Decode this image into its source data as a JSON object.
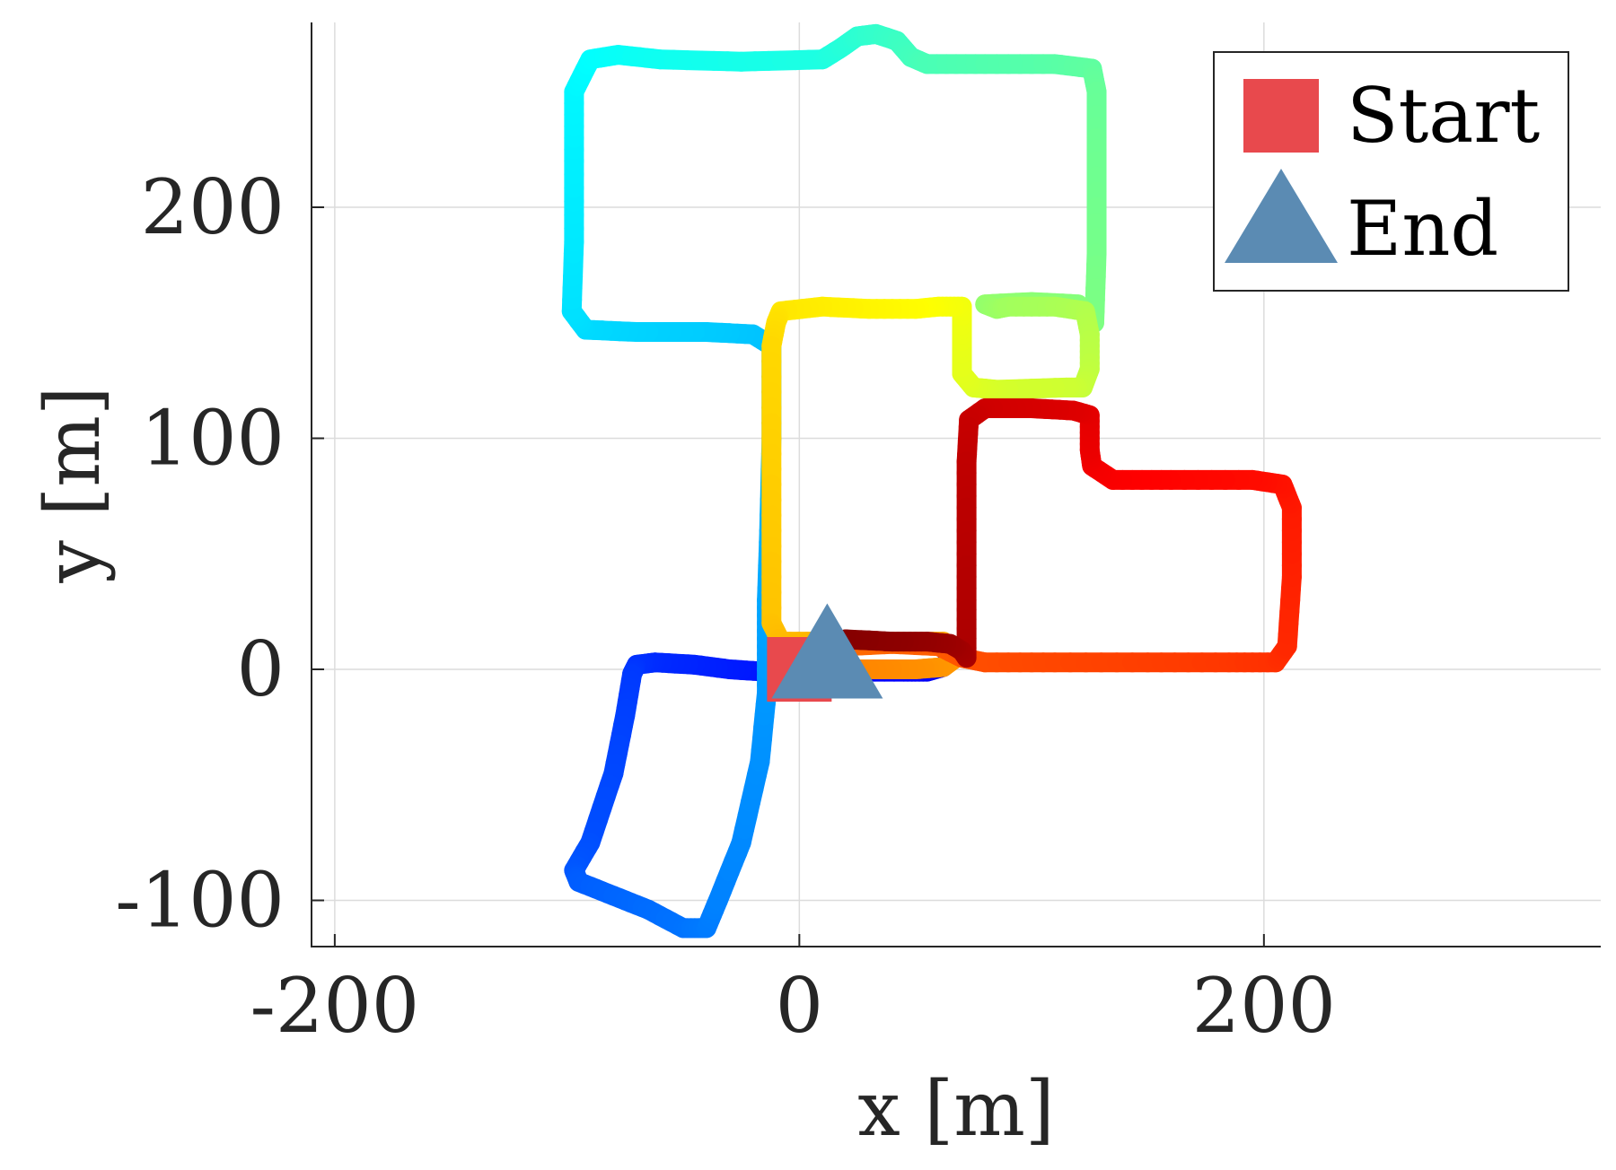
{
  "chart_data": {
    "type": "line",
    "xlabel": "x [m]",
    "ylabel": "y [m]",
    "xlim": [
      -210,
      345
    ],
    "ylim": [
      -120,
      280
    ],
    "xticks": [
      -200,
      0,
      200
    ],
    "yticks": [
      -100,
      0,
      100,
      200
    ],
    "xtick_labels": [
      "-200",
      "0",
      "200"
    ],
    "ytick_labels": [
      "-100",
      "0",
      "100",
      "200"
    ],
    "grid": true,
    "legend_position": "top-right",
    "legend": [
      {
        "label": "Start",
        "marker": "square",
        "color": "#e8494d"
      },
      {
        "label": "End",
        "marker": "triangle",
        "color": "#5b8bb3"
      }
    ],
    "start_point": {
      "x": 0,
      "y": 0
    },
    "end_point": {
      "x": 12,
      "y": 6
    },
    "colormap": "jet",
    "trajectory": [
      [
        5,
        10
      ],
      [
        20,
        13
      ],
      [
        40,
        12
      ],
      [
        55,
        12
      ],
      [
        65,
        11
      ],
      [
        70,
        8
      ],
      [
        72,
        5
      ],
      [
        72,
        30
      ],
      [
        72,
        60
      ],
      [
        72,
        90
      ],
      [
        73,
        108
      ],
      [
        80,
        113
      ],
      [
        100,
        113
      ],
      [
        118,
        112
      ],
      [
        125,
        110
      ],
      [
        125,
        95
      ],
      [
        126,
        88
      ],
      [
        135,
        82
      ],
      [
        160,
        82
      ],
      [
        195,
        82
      ],
      [
        208,
        80
      ],
      [
        212,
        70
      ],
      [
        212,
        40
      ],
      [
        210,
        10
      ],
      [
        205,
        3
      ],
      [
        185,
        3
      ],
      [
        150,
        3
      ],
      [
        110,
        3
      ],
      [
        80,
        3
      ],
      [
        70,
        5
      ],
      [
        60,
        10
      ],
      [
        40,
        11
      ],
      [
        20,
        10
      ],
      [
        8,
        9
      ],
      [
        5,
        5
      ],
      [
        8,
        0
      ],
      [
        30,
        0
      ],
      [
        50,
        0
      ],
      [
        62,
        1
      ],
      [
        66,
        4
      ],
      [
        62,
        12
      ],
      [
        40,
        12
      ],
      [
        15,
        12
      ],
      [
        -8,
        12
      ],
      [
        -12,
        20
      ],
      [
        -12,
        60
      ],
      [
        -12,
        100
      ],
      [
        -12,
        140
      ],
      [
        -10,
        150
      ],
      [
        -8,
        155
      ],
      [
        10,
        157
      ],
      [
        30,
        156
      ],
      [
        50,
        156
      ],
      [
        60,
        157
      ],
      [
        70,
        157
      ],
      [
        70,
        145
      ],
      [
        70,
        128
      ],
      [
        75,
        122
      ],
      [
        85,
        121
      ],
      [
        115,
        122
      ],
      [
        122,
        122
      ],
      [
        125,
        130
      ],
      [
        125,
        145
      ],
      [
        123,
        155
      ],
      [
        110,
        157
      ],
      [
        90,
        157
      ],
      [
        85,
        156
      ],
      [
        80,
        158
      ],
      [
        100,
        159
      ],
      [
        120,
        158
      ],
      [
        127,
        150
      ],
      [
        128,
        180
      ],
      [
        128,
        220
      ],
      [
        128,
        250
      ],
      [
        126,
        260
      ],
      [
        110,
        262
      ],
      [
        80,
        262
      ],
      [
        55,
        262
      ],
      [
        48,
        265
      ],
      [
        42,
        272
      ],
      [
        33,
        275
      ],
      [
        25,
        274
      ],
      [
        18,
        269
      ],
      [
        10,
        264
      ],
      [
        -25,
        263
      ],
      [
        -60,
        264
      ],
      [
        -78,
        266
      ],
      [
        -90,
        264
      ],
      [
        -97,
        250
      ],
      [
        -97,
        220
      ],
      [
        -97,
        185
      ],
      [
        -98,
        155
      ],
      [
        -92,
        147
      ],
      [
        -70,
        146
      ],
      [
        -40,
        146
      ],
      [
        -20,
        145
      ],
      [
        -12,
        140
      ],
      [
        -12,
        100
      ],
      [
        -13,
        60
      ],
      [
        -14,
        30
      ],
      [
        -14,
        10
      ],
      [
        -14,
        -10
      ],
      [
        -17,
        -40
      ],
      [
        -25,
        -75
      ],
      [
        -35,
        -100
      ],
      [
        -40,
        -112
      ],
      [
        -50,
        -112
      ],
      [
        -65,
        -104
      ],
      [
        -80,
        -98
      ],
      [
        -95,
        -92
      ],
      [
        -97,
        -87
      ],
      [
        -90,
        -75
      ],
      [
        -80,
        -45
      ],
      [
        -75,
        -20
      ],
      [
        -72,
        -2
      ],
      [
        -70,
        2
      ],
      [
        -62,
        3
      ],
      [
        -45,
        2
      ],
      [
        -30,
        0
      ],
      [
        -15,
        -1
      ],
      [
        0,
        -1
      ],
      [
        20,
        -1
      ],
      [
        45,
        -1
      ],
      [
        55,
        -1
      ],
      [
        62,
        1
      ],
      [
        64,
        4
      ]
    ]
  }
}
